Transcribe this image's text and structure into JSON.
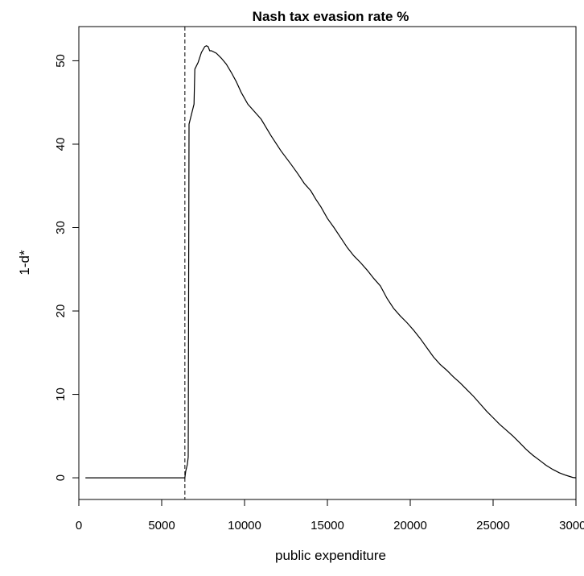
{
  "chart_data": {
    "type": "line",
    "title": "Nash tax evasion rate %",
    "xlabel": "public expenditure",
    "ylabel": "1-d*",
    "xlim": [
      0,
      30000
    ],
    "ylim": [
      -2.6,
      54.1
    ],
    "x_ticks": [
      0,
      5000,
      10000,
      15000,
      20000,
      25000,
      30000
    ],
    "y_ticks": [
      0,
      10,
      20,
      30,
      40,
      50
    ],
    "x_tick_labels": [
      "0",
      "5000",
      "10000",
      "15000",
      "20000",
      "25000",
      "30000"
    ],
    "y_tick_labels": [
      "0",
      "10",
      "20",
      "30",
      "40",
      "50"
    ],
    "grid": false,
    "legend": "none",
    "vline": {
      "x": 6400,
      "style": "dashed"
    },
    "series": [
      {
        "x": [
          400,
          6400,
          6450,
          6550,
          6600,
          6650,
          6950,
          7000,
          7200,
          7400,
          7600,
          7700,
          7800,
          7900,
          8000,
          8300,
          8600,
          8900,
          9200,
          9500,
          9800,
          10200,
          10600,
          11000,
          11600,
          12200,
          12800,
          13200,
          13600,
          14000,
          14300,
          14600,
          15000,
          15400,
          15800,
          16200,
          16600,
          17000,
          17400,
          17800,
          18200,
          18600,
          19000,
          19400,
          19800,
          20200,
          20600,
          21000,
          21400,
          21800,
          22200,
          22600,
          23000,
          23400,
          23800,
          24200,
          24600,
          25000,
          25400,
          25800,
          26200,
          26600,
          27000,
          27400,
          27800,
          28200,
          28600,
          29000,
          29400,
          29800,
          30000
        ],
        "y": [
          0,
          0,
          0.8,
          1.6,
          2.5,
          42.4,
          44.8,
          49.0,
          49.8,
          51.0,
          51.7,
          51.8,
          51.7,
          51.2,
          51.2,
          50.9,
          50.3,
          49.6,
          48.6,
          47.5,
          46.2,
          44.8,
          43.9,
          43.0,
          41.0,
          39.2,
          37.6,
          36.5,
          35.3,
          34.4,
          33.4,
          32.5,
          31.1,
          30.0,
          28.8,
          27.6,
          26.6,
          25.8,
          24.9,
          23.9,
          23.0,
          21.5,
          20.3,
          19.4,
          18.6,
          17.7,
          16.7,
          15.6,
          14.5,
          13.6,
          12.9,
          12.1,
          11.4,
          10.6,
          9.8,
          8.9,
          8.0,
          7.2,
          6.4,
          5.7,
          5.0,
          4.2,
          3.4,
          2.7,
          2.1,
          1.5,
          1.0,
          0.6,
          0.3,
          0.05,
          0.0
        ]
      }
    ]
  }
}
